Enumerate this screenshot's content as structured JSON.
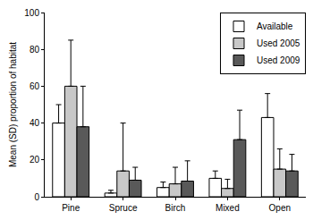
{
  "chart_data": {
    "type": "bar",
    "y_label": "Mean (SD) proportion of habitat",
    "categories": [
      "Pine",
      "Spruce",
      "Birch",
      "Mixed",
      "Open"
    ],
    "series": [
      {
        "name": "Available",
        "color": "#ffffff",
        "values": [
          40,
          2,
          5,
          10,
          43
        ],
        "errors": [
          10,
          1.5,
          3,
          4,
          13
        ]
      },
      {
        "name": "Used 2005",
        "color": "#c8c8c8",
        "values": [
          60,
          14,
          7,
          4.5,
          15
        ],
        "errors": [
          25,
          26,
          9,
          5,
          11
        ]
      },
      {
        "name": "Used 2009",
        "color": "#595959",
        "values": [
          38,
          9,
          8.5,
          31,
          14
        ],
        "errors": [
          22,
          7,
          11,
          16,
          9
        ]
      }
    ],
    "ylim": [
      0,
      100
    ],
    "yticks": [
      0,
      20,
      40,
      60,
      80,
      100
    ],
    "grid": false,
    "legend": "upper right"
  }
}
